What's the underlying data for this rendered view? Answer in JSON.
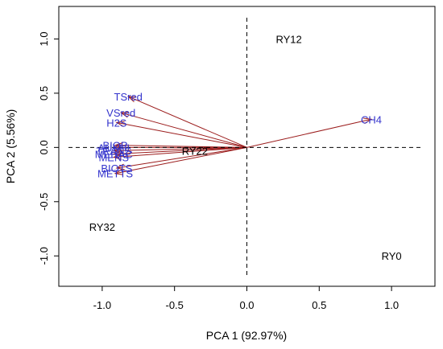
{
  "chart_data": {
    "type": "scatter",
    "title": "",
    "xlabel": "PCA 1 (92.97%)",
    "ylabel": "PCA 2 (5.56%)",
    "xlim": [
      -1.3,
      1.3
    ],
    "ylim": [
      -1.28,
      1.3
    ],
    "xticks": [
      "-1.0",
      "-0.5",
      "0.0",
      "0.5",
      "1.0"
    ],
    "xtick_values": [
      -1.0,
      -0.5,
      0.0,
      0.5,
      1.0
    ],
    "yticks": [
      "-1.0",
      "-0.5",
      "0.0",
      "0.5",
      "1.0"
    ],
    "ytick_values": [
      -1.0,
      -0.5,
      0.0,
      0.5,
      1.0
    ],
    "reference_lines": {
      "x": 0,
      "y": 0,
      "style": "dashed"
    },
    "arrow_color": "#9b1c1c",
    "variable_label_color": "#3333cc",
    "observations": [
      {
        "label": "RY12",
        "x": 0.29,
        "y": 1.0
      },
      {
        "label": "RY22",
        "x": -0.36,
        "y": -0.03
      },
      {
        "label": "RY32",
        "x": -1.0,
        "y": -0.73
      },
      {
        "label": "RY0",
        "x": 1.0,
        "y": -1.0
      }
    ],
    "variables": [
      {
        "label": "CH4",
        "x": 0.86,
        "y": 0.26
      },
      {
        "label": "TSred",
        "x": -0.82,
        "y": 0.47
      },
      {
        "label": "VSred",
        "x": -0.87,
        "y": 0.32
      },
      {
        "label": "H2S",
        "x": -0.9,
        "y": 0.23
      },
      {
        "label": "BIOP",
        "x": -0.91,
        "y": 0.02
      },
      {
        "label": "AUXHI",
        "x": -0.92,
        "y": 0.0
      },
      {
        "label": "TRANS",
        "x": -0.92,
        "y": -0.03
      },
      {
        "label": "MEHAC",
        "x": -0.92,
        "y": -0.06
      },
      {
        "label": "MENS",
        "x": -0.92,
        "y": -0.09
      },
      {
        "label": "BIOTS",
        "x": -0.9,
        "y": -0.19
      },
      {
        "label": "METTS",
        "x": -0.91,
        "y": -0.24
      }
    ],
    "grid": false,
    "legend": "none"
  }
}
